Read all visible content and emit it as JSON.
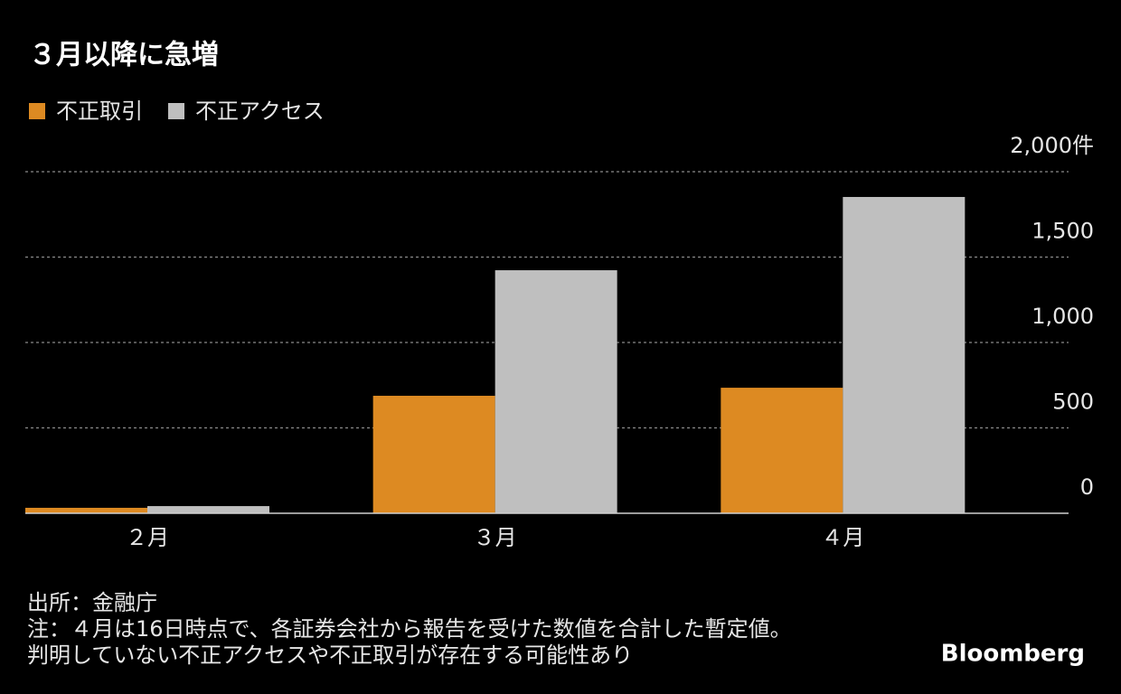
{
  "chart_data": {
    "type": "bar",
    "title": "３月以降に急増",
    "categories": [
      "２月",
      "３月",
      "４月"
    ],
    "series": [
      {
        "name": "不正取引",
        "color": "#dd8a22",
        "values": [
          32,
          688,
          735
        ]
      },
      {
        "name": "不正アクセス",
        "color": "#bfbfbf",
        "values": [
          42,
          1423,
          1852
        ]
      }
    ],
    "ylim": [
      0,
      2000
    ],
    "yticks": [
      0,
      500,
      {
        "value": 1000,
        "label": "1,000"
      },
      {
        "value": 1500,
        "label": "1,500"
      },
      {
        "value": 2000,
        "label": "2,000件"
      }
    ],
    "grid": true,
    "source": "出所：金融庁",
    "notes": [
      "注：４月は16日時点で、各証券会社から報告を受けた数値を合計した暫定値。",
      "判明していない不正アクセスや不正取引が存在する可能性あり"
    ],
    "brand": "Bloomberg"
  }
}
